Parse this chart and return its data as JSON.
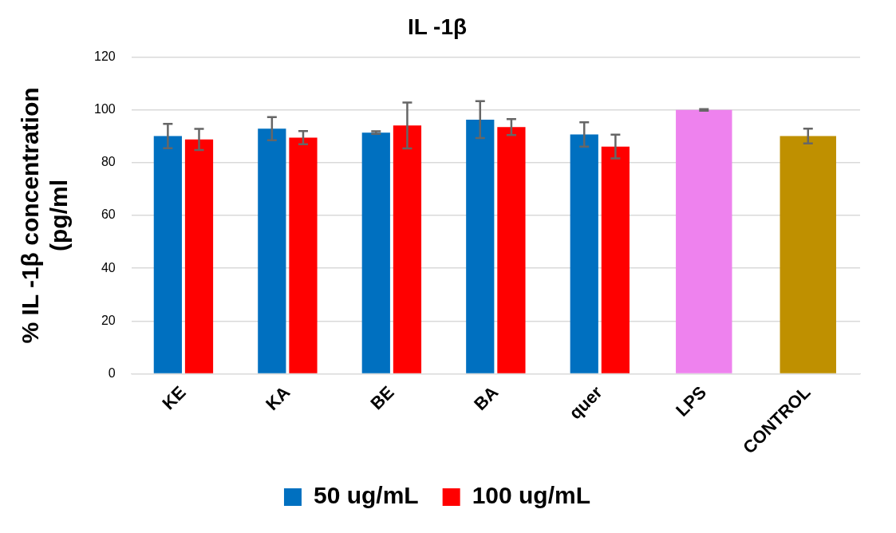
{
  "chart_data": {
    "type": "bar",
    "title": "IL -1β",
    "ylabel": "% IL -1β concentration\n(pg/ml",
    "categories": [
      "KE",
      "KA",
      "BE",
      "BA",
      "quer",
      "LPS",
      "CONTROL"
    ],
    "series": [
      {
        "name": "50 ug/mL",
        "color": "#0070c0",
        "values": [
          90.1,
          92.9,
          91.4,
          96.3,
          90.7,
          null,
          null
        ],
        "errors": [
          4.6,
          4.4,
          0.5,
          7,
          4.6,
          null,
          null
        ]
      },
      {
        "name": "100 ug/mL",
        "color": "#ff0000",
        "values": [
          88.8,
          89.5,
          94.1,
          93.5,
          86.1,
          null,
          null
        ],
        "errors": [
          4,
          2.5,
          8.7,
          3,
          4.5,
          null,
          null
        ]
      },
      {
        "colors": [
          null,
          null,
          null,
          null,
          null,
          "#ee82ee",
          "#bf9000"
        ],
        "values": [
          null,
          null,
          null,
          null,
          null,
          100,
          90.1
        ],
        "errors": [
          null,
          null,
          null,
          null,
          null,
          0.3,
          2.8
        ]
      }
    ],
    "ylim": [
      0,
      120
    ],
    "yticks": [
      0,
      20,
      40,
      60,
      80,
      100,
      120
    ],
    "grid": "y",
    "legend": "bottom"
  }
}
